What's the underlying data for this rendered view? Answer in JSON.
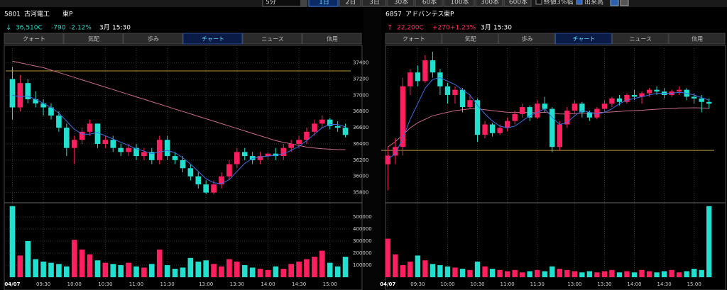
{
  "toolbar": {
    "interval": "5分",
    "buttons": [
      "1日",
      "2日",
      "3日",
      "30本",
      "60本",
      "100本",
      "300本",
      "600本"
    ],
    "active_button": 0,
    "checkboxes": [
      {
        "label": "終値3%幅",
        "checked": false
      },
      {
        "label": "出来高",
        "checked": true
      }
    ]
  },
  "panels": [
    {
      "code": "5801",
      "name": "古河電工",
      "market": "東P",
      "arrow": "↓",
      "price": "36,510C",
      "change": "-790",
      "change_pct": "-2.12%",
      "contract": "3月",
      "time": "15:30",
      "quote_color": "#22d6c8",
      "tabs": [
        "クォート",
        "気配",
        "歩み",
        "チャート",
        "ニュース",
        "信用"
      ],
      "active_tab": 3,
      "chart": {
        "type": "candlestick",
        "categories": [
          "04/07",
          null,
          null,
          null,
          "09:30",
          null,
          null,
          null,
          "10:00",
          null,
          null,
          null,
          "10:30",
          null,
          null,
          null,
          "11:00",
          null,
          null,
          null,
          "11:30",
          null,
          null,
          null,
          null,
          "13:00",
          null,
          null,
          null,
          "13:30",
          null,
          null,
          null,
          "14:00",
          null,
          null,
          null,
          "14:30",
          null,
          null,
          null,
          "15:00",
          null,
          null
        ],
        "candles": [
          [
            37200,
            37350,
            36700,
            36850
          ],
          [
            36850,
            37250,
            36800,
            37150
          ],
          [
            37150,
            37200,
            36900,
            36950
          ],
          [
            36950,
            37050,
            36850,
            36900
          ],
          [
            36900,
            36950,
            36750,
            36850
          ],
          [
            36850,
            36900,
            36700,
            36750
          ],
          [
            36750,
            36800,
            36550,
            36600
          ],
          [
            36600,
            36650,
            36250,
            36350
          ],
          [
            36350,
            36500,
            36150,
            36450
          ],
          [
            36450,
            36600,
            36400,
            36550
          ],
          [
            36550,
            36700,
            36500,
            36650
          ],
          [
            36650,
            36650,
            36350,
            36400
          ],
          [
            36400,
            36500,
            36350,
            36450
          ],
          [
            36450,
            36500,
            36300,
            36350
          ],
          [
            36350,
            36400,
            36250,
            36300
          ],
          [
            36300,
            36400,
            36250,
            36350
          ],
          [
            36350,
            36400,
            36200,
            36250
          ],
          [
            36250,
            36350,
            36200,
            36300
          ],
          [
            36300,
            36350,
            36150,
            36200
          ],
          [
            36200,
            36500,
            36150,
            36450
          ],
          [
            36450,
            36500,
            36200,
            36250
          ],
          [
            36250,
            36300,
            36150,
            36200
          ],
          [
            36200,
            36250,
            36050,
            36100
          ],
          [
            36100,
            36150,
            35950,
            36000
          ],
          [
            36000,
            36050,
            35850,
            35900
          ],
          [
            35900,
            35950,
            35780,
            35800
          ],
          [
            35800,
            35950,
            35780,
            35900
          ],
          [
            35900,
            36050,
            35850,
            36000
          ],
          [
            36000,
            36200,
            35950,
            36150
          ],
          [
            36150,
            36350,
            36100,
            36300
          ],
          [
            36300,
            36350,
            36200,
            36250
          ],
          [
            36250,
            36300,
            36150,
            36200
          ],
          [
            36200,
            36300,
            36150,
            36250
          ],
          [
            36250,
            36300,
            36200,
            36280
          ],
          [
            36280,
            36350,
            36200,
            36250
          ],
          [
            36250,
            36400,
            36200,
            36350
          ],
          [
            36350,
            36450,
            36300,
            36400
          ],
          [
            36400,
            36500,
            36350,
            36450
          ],
          [
            36450,
            36600,
            36400,
            36550
          ],
          [
            36550,
            36700,
            36500,
            36650
          ],
          [
            36650,
            36750,
            36600,
            36700
          ],
          [
            36700,
            36720,
            36580,
            36620
          ],
          [
            36620,
            36680,
            36550,
            36600
          ],
          [
            36600,
            36650,
            36480,
            36510
          ]
        ],
        "volumes": [
          590000,
          180000,
          300000,
          150000,
          130000,
          120000,
          110000,
          90000,
          310000,
          230000,
          190000,
          140000,
          120000,
          110000,
          100000,
          120000,
          90000,
          80000,
          110000,
          230000,
          100000,
          70000,
          80000,
          160000,
          130000,
          140000,
          110000,
          90000,
          150000,
          130000,
          100000,
          80000,
          70000,
          60000,
          90000,
          70000,
          110000,
          130000,
          150000,
          170000,
          220000,
          120000,
          90000,
          170000
        ],
        "ma_short": [
          37000,
          36980,
          36990,
          36950,
          36900,
          36850,
          36780,
          36680,
          36580,
          36520,
          36520,
          36540,
          36500,
          36460,
          36420,
          36380,
          36340,
          36310,
          36280,
          36300,
          36320,
          36290,
          36230,
          36150,
          36060,
          35970,
          35920,
          35910,
          35960,
          36060,
          36160,
          36220,
          36240,
          36250,
          36260,
          36280,
          36320,
          36370,
          36440,
          36520,
          36600,
          36640,
          36640,
          36610
        ],
        "ma_long": [
          37420,
          37400,
          37380,
          37360,
          37340,
          37310,
          37280,
          37250,
          37220,
          37190,
          37160,
          37130,
          37100,
          37070,
          37040,
          37010,
          36980,
          36950,
          36920,
          36890,
          36860,
          36830,
          36800,
          36770,
          36740,
          36710,
          36680,
          36650,
          36620,
          36590,
          36560,
          36530,
          36500,
          36470,
          36440,
          36420,
          36400,
          36380,
          36360,
          36350,
          36340,
          36335,
          36330,
          36330
        ],
        "reference": 37300,
        "ylim": [
          35700,
          37580
        ],
        "yticks": [
          35800,
          36000,
          36200,
          36400,
          36600,
          36800,
          37000,
          37200,
          37400
        ],
        "volume_ylim": [
          0,
          600000
        ],
        "volume_yticks": [
          100000,
          200000,
          300000,
          400000,
          500000
        ],
        "up_color": "#ff1f60",
        "down_color": "#22e0d0",
        "ma_short_color": "#3b6fe0",
        "ma_long_color": "#c86a88",
        "reference_color": "#b89a3a",
        "grid": true
      }
    },
    {
      "code": "6857",
      "name": "アドバンテス",
      "market": "東P",
      "arrow": "↑",
      "price": "22,200C",
      "change": "+270",
      "change_pct": "+1.23%",
      "contract": "3月",
      "time": "15:30",
      "quote_color": "#ff2a66",
      "tabs": [
        "クォート",
        "気配",
        "歩み",
        "チャート",
        "ニュース",
        "信用"
      ],
      "active_tab": 3,
      "chart": {
        "type": "candlestick",
        "categories": [
          "04/07",
          null,
          null,
          null,
          "09:30",
          null,
          null,
          null,
          "10:00",
          null,
          null,
          null,
          "10:30",
          null,
          null,
          null,
          "11:00",
          null,
          null,
          null,
          "11:30",
          null,
          null,
          null,
          null,
          "13:00",
          null,
          null,
          null,
          "13:30",
          null,
          null,
          null,
          "14:00",
          null,
          null,
          null,
          "14:30",
          null,
          null,
          null,
          "15:00",
          null,
          null
        ],
        "candles": [
          [
            21850,
            21950,
            21700,
            21900
          ],
          [
            21900,
            22000,
            21850,
            21950
          ],
          [
            21950,
            22350,
            21900,
            22300
          ],
          [
            22300,
            22400,
            22250,
            22380
          ],
          [
            22380,
            22420,
            22300,
            22330
          ],
          [
            22330,
            22480,
            22320,
            22450
          ],
          [
            22450,
            22500,
            22350,
            22380
          ],
          [
            22380,
            22400,
            22250,
            22300
          ],
          [
            22300,
            22320,
            22200,
            22250
          ],
          [
            22250,
            22300,
            22200,
            22280
          ],
          [
            22280,
            22290,
            22150,
            22180
          ],
          [
            22180,
            22250,
            22170,
            22220
          ],
          [
            22220,
            22230,
            21980,
            22020
          ],
          [
            22020,
            22100,
            22000,
            22080
          ],
          [
            22080,
            22090,
            22010,
            22030
          ],
          [
            22030,
            22080,
            22020,
            22060
          ],
          [
            22060,
            22120,
            22040,
            22100
          ],
          [
            22100,
            22160,
            22080,
            22140
          ],
          [
            22140,
            22200,
            22120,
            22180
          ],
          [
            22180,
            22190,
            22100,
            22120
          ],
          [
            22120,
            22220,
            22110,
            22200
          ],
          [
            22200,
            22240,
            22150,
            22170
          ],
          [
            22170,
            22180,
            21920,
            21950
          ],
          [
            21950,
            22100,
            21930,
            22080
          ],
          [
            22080,
            22180,
            22060,
            22160
          ],
          [
            22160,
            22220,
            22140,
            22200
          ],
          [
            22200,
            22210,
            22120,
            22150
          ],
          [
            22150,
            22160,
            22100,
            22120
          ],
          [
            22120,
            22180,
            22110,
            22170
          ],
          [
            22170,
            22220,
            22150,
            22200
          ],
          [
            22200,
            22240,
            22180,
            22230
          ],
          [
            22230,
            22250,
            22190,
            22210
          ],
          [
            22210,
            22260,
            22200,
            22250
          ],
          [
            22250,
            22280,
            22220,
            22240
          ],
          [
            22240,
            22270,
            22200,
            22260
          ],
          [
            22260,
            22290,
            22240,
            22280
          ],
          [
            22280,
            22300,
            22250,
            22270
          ],
          [
            22270,
            22290,
            22230,
            22250
          ],
          [
            22250,
            22280,
            22240,
            22270
          ],
          [
            22270,
            22300,
            22250,
            22280
          ],
          [
            22280,
            22290,
            22220,
            22240
          ],
          [
            22240,
            22260,
            22200,
            22230
          ],
          [
            22230,
            22250,
            22150,
            22210
          ],
          [
            22210,
            22230,
            22170,
            22200
          ]
        ],
        "volumes": [
          320000,
          190000,
          100000,
          130000,
          180000,
          140000,
          110000,
          100000,
          90000,
          80000,
          70000,
          60000,
          130000,
          90000,
          70000,
          60000,
          50000,
          60000,
          40000,
          50000,
          60000,
          50000,
          90000,
          70000,
          60000,
          50000,
          40000,
          50000,
          40000,
          50000,
          60000,
          40000,
          50000,
          40000,
          60000,
          50000,
          40000,
          50000,
          60000,
          40000,
          50000,
          70000,
          60000,
          590000
        ],
        "ma_short": [
          21880,
          21910,
          22000,
          22110,
          22200,
          22290,
          22340,
          22350,
          22330,
          22310,
          22280,
          22250,
          22190,
          22140,
          22100,
          22070,
          22060,
          22070,
          22100,
          22130,
          22150,
          22170,
          22120,
          22080,
          22090,
          22130,
          22160,
          22150,
          22140,
          22150,
          22170,
          22200,
          22220,
          22230,
          22240,
          22250,
          22260,
          22260,
          22260,
          22265,
          22260,
          22250,
          22235,
          22220
        ],
        "ma_long": [
          21950,
          21980,
          22020,
          22060,
          22090,
          22110,
          22130,
          22140,
          22150,
          22160,
          22165,
          22170,
          22170,
          22165,
          22160,
          22155,
          22150,
          22150,
          22150,
          22148,
          22148,
          22150,
          22145,
          22140,
          22140,
          22142,
          22145,
          22145,
          22148,
          22150,
          22152,
          22155,
          22158,
          22160,
          22162,
          22165,
          22168,
          22170,
          22172,
          22175,
          22175,
          22176,
          22175,
          22174
        ],
        "reference": 21930,
        "ylim": [
          21640,
          22520
        ],
        "volume_ylim": [
          0,
          600000
        ],
        "up_color": "#ff1f60",
        "down_color": "#22e0d0",
        "ma_short_color": "#3b6fe0",
        "ma_long_color": "#c86a88",
        "reference_color": "#b89a3a",
        "grid": true
      }
    }
  ]
}
